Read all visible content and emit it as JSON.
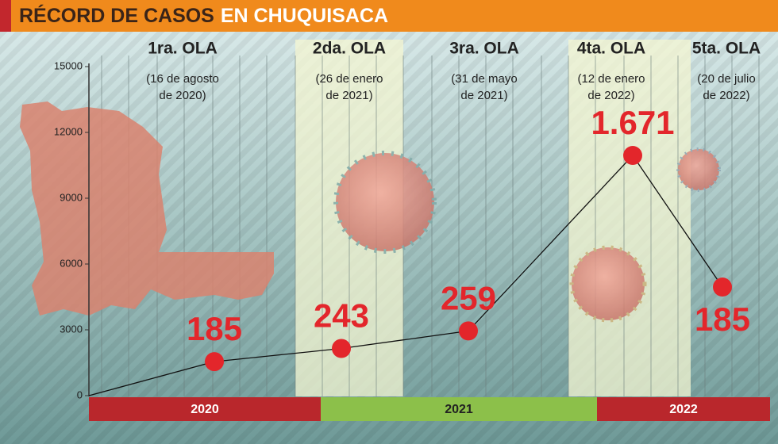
{
  "header": {
    "title": "RÉCORD DE CASOS",
    "highlight": "EN CHUQUISACA"
  },
  "chart_data": {
    "type": "line",
    "categories": [
      "1ra. OLA",
      "2da. OLA",
      "3ra. OLA",
      "4ta. OLA",
      "5ta. OLA"
    ],
    "dates": [
      [
        "(16 de agosto",
        "de 2020)"
      ],
      [
        "(26 de enero",
        "de 2021)"
      ],
      [
        "(31 de mayo",
        "de 2021)"
      ],
      [
        "(12 de enero",
        "de 2022)"
      ],
      [
        "(20 de julio",
        "de 2022)"
      ]
    ],
    "values": [
      1550,
      2150,
      2950,
      10950,
      4950
    ],
    "annotations": [
      "185",
      "243",
      "259",
      "1.671",
      "185"
    ],
    "color": "#e3262b",
    "ylim": [
      0,
      15000
    ],
    "yticks": [
      0,
      3000,
      6000,
      9000,
      12000,
      15000
    ],
    "years": [
      "2020",
      "2021",
      "2022"
    ],
    "year_colors": [
      "#b9272c",
      "#8cc04a",
      "#b9272c"
    ]
  }
}
